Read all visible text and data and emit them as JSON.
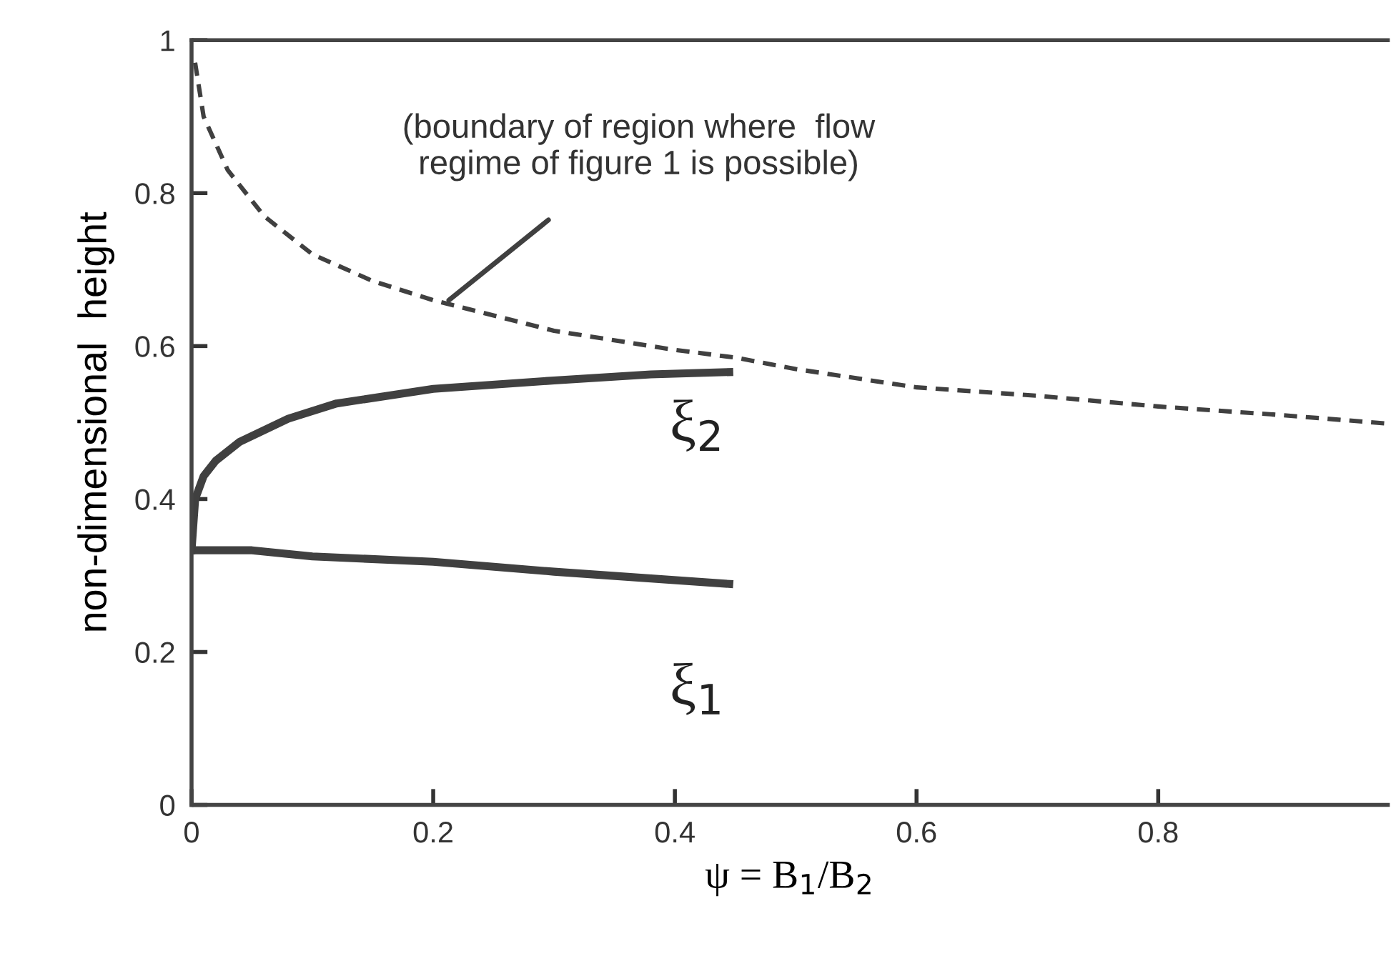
{
  "chart_data": {
    "type": "line",
    "xlabel": "ψ = B$_{1}$/B$_{2}$",
    "ylabel": "non-dimensional  height",
    "xlim": [
      0,
      0.99
    ],
    "xticks": [
      0,
      0.2,
      0.4,
      0.6,
      0.8
    ],
    "ylim": [
      0,
      1
    ],
    "yticks": [
      0,
      0.2,
      0.4,
      0.6,
      0.8,
      1
    ],
    "grid": false,
    "marker": "none",
    "series": [
      {
        "name": "ξ$_{1}$",
        "color": "#404040",
        "line_style": "solid",
        "x": [
          0,
          0.05,
          0.1,
          0.2,
          0.3,
          0.445
        ],
        "values": [
          0.333,
          0.333,
          0.325,
          0.318,
          0.305,
          0.289
        ]
      },
      {
        "name": "ξ$_{2}$",
        "color": "#404040",
        "line_style": "solid",
        "x": [
          0,
          0.003,
          0.01,
          0.02,
          0.04,
          0.08,
          0.12,
          0.2,
          0.3,
          0.38,
          0.445
        ],
        "values": [
          0.333,
          0.4,
          0.43,
          0.45,
          0.475,
          0.505,
          0.525,
          0.544,
          0.555,
          0.563,
          0.566
        ]
      },
      {
        "color": "#404040",
        "line_style": "dashed",
        "x": [
          0.002,
          0.01,
          0.03,
          0.06,
          0.1,
          0.15,
          0.2,
          0.3,
          0.4,
          0.45,
          0.5,
          0.6,
          0.7,
          0.8,
          0.9,
          0.987
        ],
        "values": [
          0.98,
          0.9,
          0.83,
          0.77,
          0.72,
          0.685,
          0.66,
          0.62,
          0.595,
          0.585,
          0.57,
          0.546,
          0.535,
          0.521,
          0.51,
          0.499
        ]
      }
    ],
    "annotations": [
      {
        "text": "(boundary of region where  flow\nregime of figure 1 is possible)",
        "x": 0.213,
        "y": 0.66
      }
    ]
  }
}
